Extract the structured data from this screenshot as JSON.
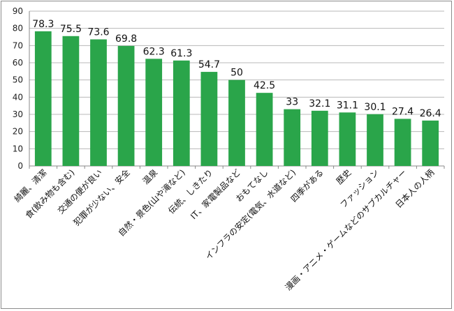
{
  "chart_data": {
    "type": "bar",
    "categories": [
      "綺麗、清潔",
      "食(飲み物も含む)",
      "交通の便が良い",
      "犯罪が少ない、安全",
      "温泉",
      "自然・景色(山や滝など)",
      "伝統、しきたり",
      "IT、家電製品など",
      "おもてなし",
      "インフラの安定(電気、水道など)",
      "四季がある",
      "歴史",
      "ファッション",
      "漫画・アニメ・ゲームなどのサブカルチャー",
      "日本人の人柄"
    ],
    "values": [
      78.3,
      75.5,
      73.6,
      69.8,
      62.3,
      61.3,
      54.7,
      50,
      42.5,
      33,
      32.1,
      31.1,
      30.1,
      27.4,
      26.4
    ],
    "value_labels": [
      "78.3",
      "75.5",
      "73.6",
      "69.8",
      "62.3",
      "61.3",
      "54.7",
      "50",
      "42.5",
      "33",
      "32.1",
      "31.1",
      "30.1",
      "27.4",
      "26.4"
    ],
    "ylim": [
      0,
      90
    ],
    "yticks": [
      "0",
      "10",
      "20",
      "30",
      "40",
      "50",
      "60",
      "70",
      "80",
      "90"
    ],
    "grid": true,
    "legend": "none",
    "colors": {
      "bar": "#2aa54a",
      "grid": "#b8b8b8",
      "axis": "#888888"
    }
  }
}
